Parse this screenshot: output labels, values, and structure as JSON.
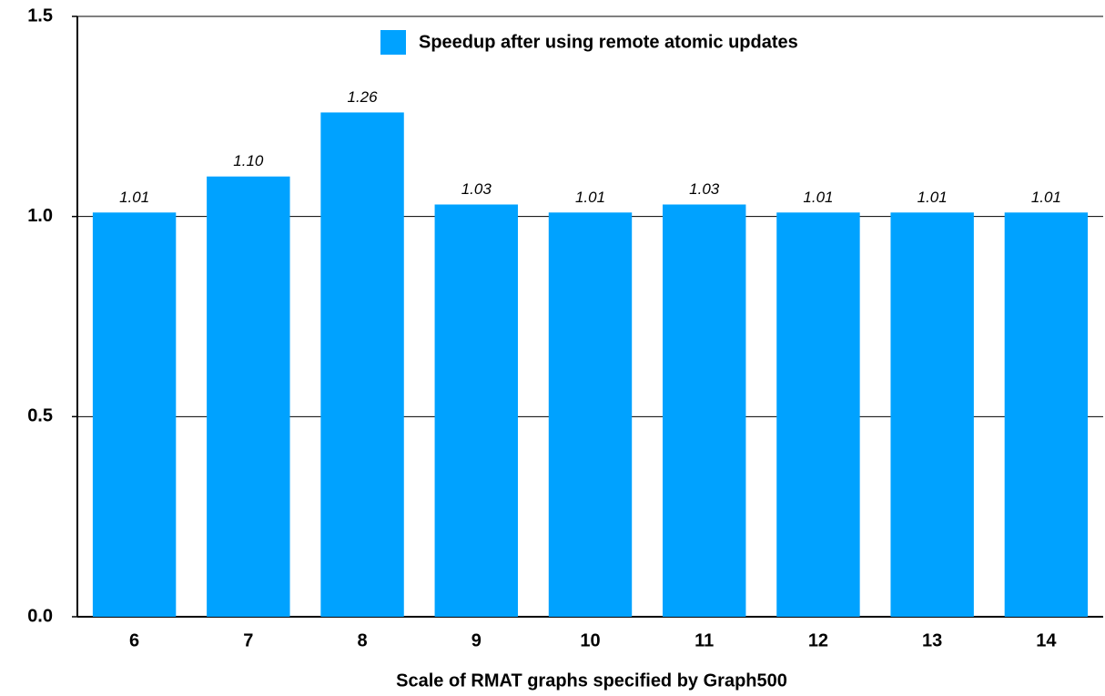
{
  "chart_data": {
    "type": "bar",
    "x_label": "Scale of RMAT graphs specified by Graph500",
    "categories": [
      "6",
      "7",
      "8",
      "9",
      "10",
      "11",
      "12",
      "13",
      "14"
    ],
    "series": [
      {
        "name": "Speedup after using remote atomic updates",
        "color": "#00a2ff",
        "values": [
          1.01,
          1.1,
          1.26,
          1.03,
          1.01,
          1.03,
          1.01,
          1.01,
          1.01
        ],
        "value_labels": [
          "1.01",
          "1.10",
          "1.26",
          "1.03",
          "1.01",
          "1.03",
          "1.01",
          "1.01",
          "1.01"
        ]
      }
    ],
    "ylim": [
      0,
      1.5
    ],
    "yticks": [
      {
        "value": 0,
        "label": "0.0"
      },
      0.5,
      {
        "value": 1,
        "label": "1.0"
      },
      1.5
    ],
    "grid": true,
    "legend": "top"
  }
}
